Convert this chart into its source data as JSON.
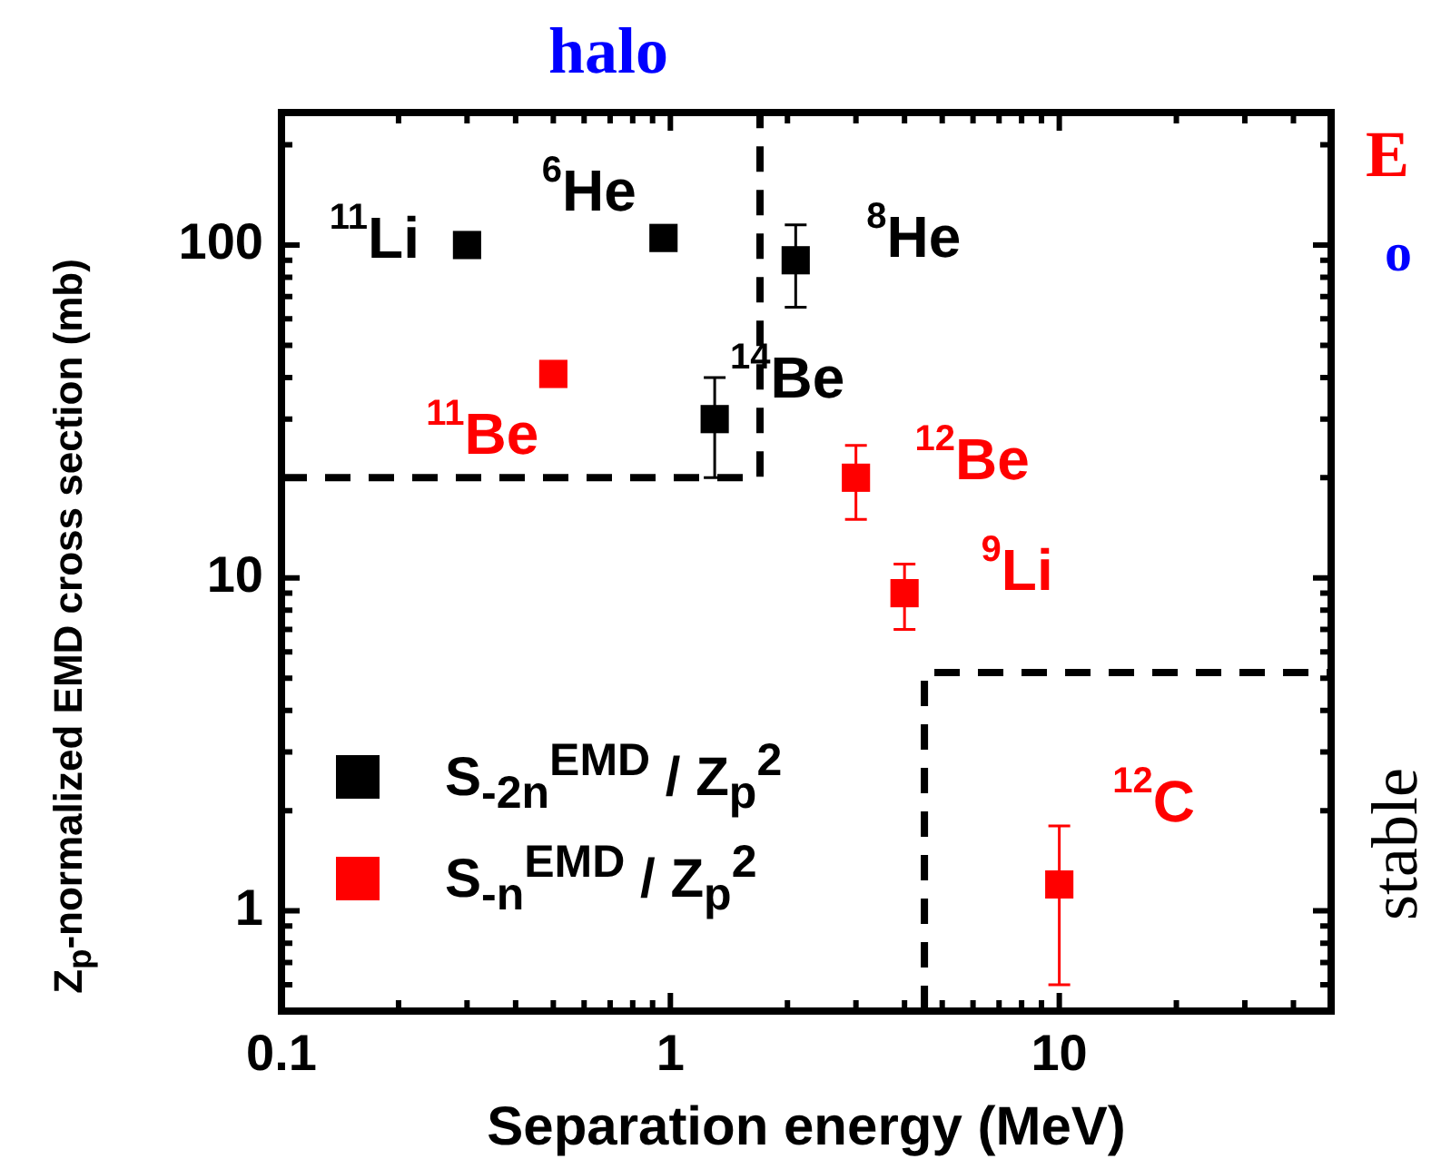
{
  "chart_data": {
    "type": "scatter",
    "xlabel": "Separation energy (MeV)",
    "ylabel": "Z$_{p}$-normalized EMD cross section (mb)",
    "log": "xy",
    "xlim": [
      0.1,
      50
    ],
    "ylim": [
      0.5,
      250
    ],
    "xticks": [
      0.1,
      {
        "value": 0.2,
        "label": null
      },
      {
        "value": 0.3,
        "label": null
      },
      {
        "value": 0.4,
        "label": null
      },
      {
        "value": 0.5,
        "label": null
      },
      {
        "value": 0.6,
        "label": null
      },
      {
        "value": 0.7,
        "label": null
      },
      {
        "value": 0.8,
        "label": null
      },
      {
        "value": 0.9,
        "label": null
      },
      1,
      {
        "value": 2,
        "label": null
      },
      {
        "value": 3,
        "label": null
      },
      {
        "value": 4,
        "label": null
      },
      {
        "value": 5,
        "label": null
      },
      {
        "value": 6,
        "label": null
      },
      {
        "value": 7,
        "label": null
      },
      {
        "value": 8,
        "label": null
      },
      {
        "value": 9,
        "label": null
      },
      10,
      {
        "value": 20,
        "label": null
      },
      {
        "value": 30,
        "label": null
      },
      {
        "value": 40,
        "label": null
      }
    ],
    "yticks": [
      {
        "value": 0.6,
        "label": null
      },
      {
        "value": 0.7,
        "label": null
      },
      {
        "value": 0.8,
        "label": null
      },
      {
        "value": 0.9,
        "label": null
      },
      1,
      {
        "value": 2,
        "label": null
      },
      {
        "value": 3,
        "label": null
      },
      {
        "value": 4,
        "label": null
      },
      {
        "value": 5,
        "label": null
      },
      {
        "value": 6,
        "label": null
      },
      {
        "value": 7,
        "label": null
      },
      {
        "value": 8,
        "label": null
      },
      {
        "value": 9,
        "label": null
      },
      10,
      {
        "value": 20,
        "label": null
      },
      {
        "value": 30,
        "label": null
      },
      {
        "value": 40,
        "label": null
      },
      {
        "value": 50,
        "label": null
      },
      {
        "value": 60,
        "label": null
      },
      {
        "value": 70,
        "label": null
      },
      {
        "value": 80,
        "label": null
      },
      {
        "value": 90,
        "label": null
      },
      100,
      {
        "value": 200,
        "label": null
      }
    ],
    "grid": false,
    "legend": "bottom left",
    "marker": "square",
    "series": [
      {
        "name": "S$_{-2n}$$^{EMD}$ / Z$_{p}$$^{2}$",
        "color": "#000000",
        "x": [
          0.3,
          0.96,
          2.1,
          1.3
        ],
        "values": [
          100,
          105,
          90,
          30
        ],
        "errors": [
          null,
          null,
          [
            65,
            115
          ],
          [
            20,
            40
          ]
        ]
      },
      {
        "name": "S$_{-n}$$^{EMD}$ / Z$_{p}$$^{2}$",
        "color": "#ff0000",
        "x": [
          0.5,
          3.0,
          4.0,
          10
        ],
        "values": [
          41,
          20,
          9,
          1.2
        ],
        "errors": [
          null,
          [
            15,
            25
          ],
          [
            7,
            11
          ],
          [
            0.6,
            1.8
          ]
        ]
      },
      {
        "type": "line",
        "color": "#000000",
        "line_style": "dashed",
        "marker": "none",
        "x": [
          0.1,
          1.7,
          1.7
        ],
        "values": [
          20,
          20,
          250
        ]
      },
      {
        "type": "line",
        "color": "#000000",
        "line_style": "dashed",
        "marker": "none",
        "x": [
          4.5,
          4.5,
          50
        ],
        "values": [
          0.5,
          5.2,
          5.2
        ]
      }
    ],
    "annotations": [
      {
        "text": "$^{11}$Li",
        "x": 0.3,
        "y": 100
      },
      {
        "text": "$^{6}$He",
        "x": 0.96,
        "y": 105
      },
      {
        "text": "$^{8}$He",
        "x": 2.1,
        "y": 90
      },
      {
        "text": "$^{14}$Be",
        "x": 1.3,
        "y": 30
      },
      {
        "text": "$^{11}$Be",
        "x": 0.5,
        "y": 41
      },
      {
        "text": "$^{12}$Be",
        "x": 3.0,
        "y": 20
      },
      {
        "text": "$^{9}$Li",
        "x": 4.0,
        "y": 9
      },
      {
        "text": "$^{12}$C",
        "x": 10,
        "y": 1.2
      },
      "halo",
      "E",
      "o",
      "stable"
    ]
  }
}
